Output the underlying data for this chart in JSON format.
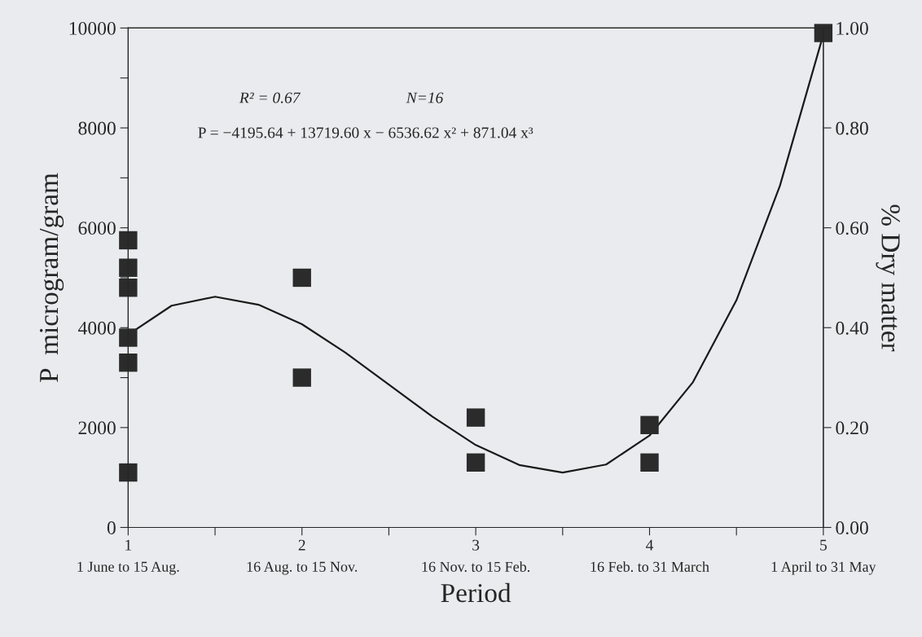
{
  "chart_data": {
    "type": "scatter",
    "xlabel": "Period",
    "ylabel": "P  microgram/gram",
    "y2label": "% Dry matter",
    "xlim": [
      1,
      5
    ],
    "xticks": [
      1,
      {
        "value": 1.5,
        "label": null
      },
      2,
      {
        "value": 2.5,
        "label": null
      },
      3,
      {
        "value": 3.5,
        "label": null
      },
      4,
      {
        "value": 4.5,
        "label": null
      },
      5
    ],
    "ylim": [
      0,
      10000
    ],
    "yticks": [
      0,
      {
        "value": 1000,
        "label": null
      },
      2000,
      {
        "value": 3000,
        "label": null
      },
      4000,
      {
        "value": 5000,
        "label": null
      },
      6000,
      {
        "value": 7000,
        "label": null
      },
      8000,
      {
        "value": 9000,
        "label": null
      },
      10000
    ],
    "y2lim": [
      0,
      1
    ],
    "y2ticks": [
      {
        "value": 0,
        "label": "0.00"
      },
      {
        "value": 0.2,
        "label": "0.20"
      },
      {
        "value": 0.4,
        "label": "0.40"
      },
      {
        "value": 0.6,
        "label": "0.60"
      },
      {
        "value": 0.8,
        "label": "0.80"
      },
      {
        "value": 1,
        "label": "1.00"
      }
    ],
    "grid": false,
    "legend": false,
    "series": [
      {
        "marker": "square",
        "color": "#2b2b2b",
        "x": [
          1,
          1,
          1,
          1,
          1,
          1,
          2,
          2,
          3,
          3,
          4,
          4,
          5
        ],
        "values": [
          5750,
          5200,
          4800,
          3800,
          3300,
          1100,
          5000,
          3000,
          2200,
          1300,
          2050,
          1300,
          9900
        ]
      },
      {
        "type": "line",
        "line_style": "solid",
        "marker": "none",
        "color": "#1a1a1a",
        "x": [
          1,
          1.25,
          1.5,
          1.75,
          2,
          2.25,
          2.5,
          2.75,
          3,
          3.25,
          3.5,
          3.75,
          4,
          4.25,
          4.5,
          4.75,
          5
        ],
        "values": [
          3860,
          4440,
          4620,
          4460,
          4070,
          3500,
          2860,
          2220,
          1650,
          1250,
          1100,
          1260,
          1840,
          2910,
          4550,
          6840,
          9870
        ]
      }
    ],
    "annotations": [
      "R² = 0.67",
      "N=16",
      "P = −4195.64 + 13719.60 x − 6536.62 x² + 871.04 x³",
      "1 June to 15 Aug.",
      "16 Aug. to 15 Nov.",
      "16 Nov. to 15 Feb.",
      "16 Feb. to 31 March",
      "1 April to 31 May"
    ]
  }
}
